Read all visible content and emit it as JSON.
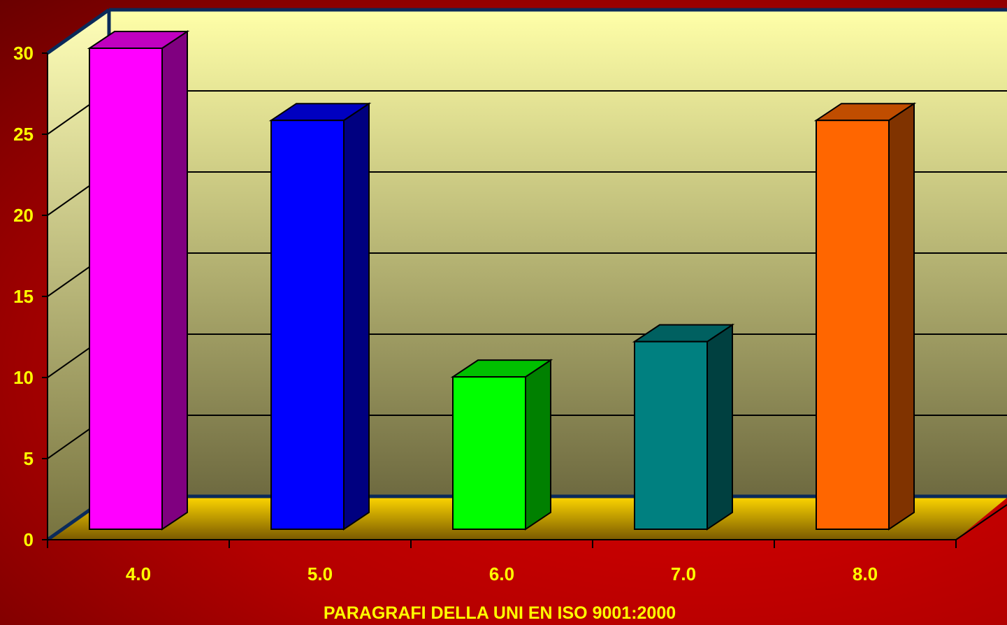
{
  "chart_data": {
    "type": "bar",
    "title": "",
    "xlabel": "PARAGRAFI  DELLA  UNI EN ISO 9001:2000",
    "ylabel": "",
    "categories": [
      "4.0",
      "5.0",
      "6.0",
      "7.0",
      "8.0"
    ],
    "values": [
      30,
      25.5,
      9.5,
      11.7,
      25.5
    ],
    "ylim": [
      0,
      30
    ],
    "yticks": [
      "0",
      "5",
      "10",
      "15",
      "20",
      "25",
      "30"
    ],
    "grid": true,
    "legend": "none",
    "bar_colors": [
      {
        "front": "#ff00ff",
        "side": "#800080",
        "top": "#c000c0"
      },
      {
        "front": "#0000ff",
        "side": "#000080",
        "top": "#0000c0"
      },
      {
        "front": "#00ff00",
        "side": "#008000",
        "top": "#00c000"
      },
      {
        "front": "#008080",
        "side": "#004040",
        "top": "#006060"
      },
      {
        "front": "#ff6600",
        "side": "#803300",
        "top": "#c04d00"
      }
    ],
    "wall_color_top": "#ffffa8",
    "wall_color_bottom": "#6e6a40",
    "floor_color": "#ffcc00",
    "axis_color": "#0a2a5a"
  }
}
